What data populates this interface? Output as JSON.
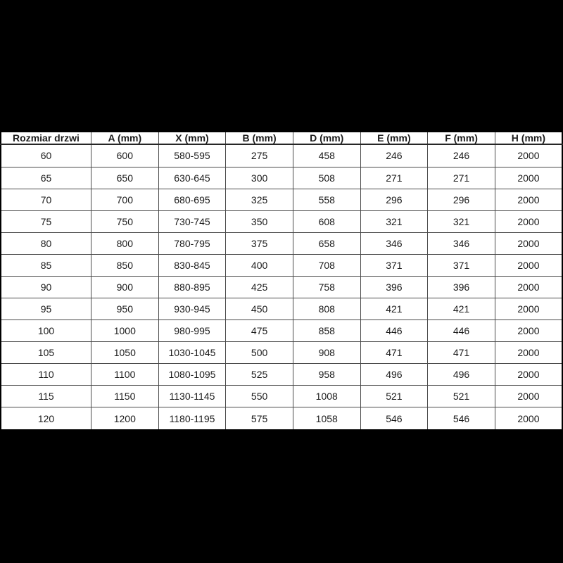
{
  "table": {
    "headers": [
      "Rozmiar drzwi",
      "A (mm)",
      "X (mm)",
      "B (mm)",
      "D (mm)",
      "E (mm)",
      "F (mm)",
      "H (mm)"
    ],
    "rows": [
      [
        "60",
        "600",
        "580-595",
        "275",
        "458",
        "246",
        "246",
        "2000"
      ],
      [
        "65",
        "650",
        "630-645",
        "300",
        "508",
        "271",
        "271",
        "2000"
      ],
      [
        "70",
        "700",
        "680-695",
        "325",
        "558",
        "296",
        "296",
        "2000"
      ],
      [
        "75",
        "750",
        "730-745",
        "350",
        "608",
        "321",
        "321",
        "2000"
      ],
      [
        "80",
        "800",
        "780-795",
        "375",
        "658",
        "346",
        "346",
        "2000"
      ],
      [
        "85",
        "850",
        "830-845",
        "400",
        "708",
        "371",
        "371",
        "2000"
      ],
      [
        "90",
        "900",
        "880-895",
        "425",
        "758",
        "396",
        "396",
        "2000"
      ],
      [
        "95",
        "950",
        "930-945",
        "450",
        "808",
        "421",
        "421",
        "2000"
      ],
      [
        "100",
        "1000",
        "980-995",
        "475",
        "858",
        "446",
        "446",
        "2000"
      ],
      [
        "105",
        "1050",
        "1030-1045",
        "500",
        "908",
        "471",
        "471",
        "2000"
      ],
      [
        "110",
        "1100",
        "1080-1095",
        "525",
        "958",
        "496",
        "496",
        "2000"
      ],
      [
        "115",
        "1150",
        "1130-1145",
        "550",
        "1008",
        "521",
        "521",
        "2000"
      ],
      [
        "120",
        "1200",
        "1180-1195",
        "575",
        "1058",
        "546",
        "546",
        "2000"
      ]
    ]
  },
  "colors": {
    "page_background": "#000000",
    "cell_background": "#ffffff",
    "grid_border": "#4a4a4a",
    "header_rule": "#262626",
    "text": "#1a1a1a"
  }
}
